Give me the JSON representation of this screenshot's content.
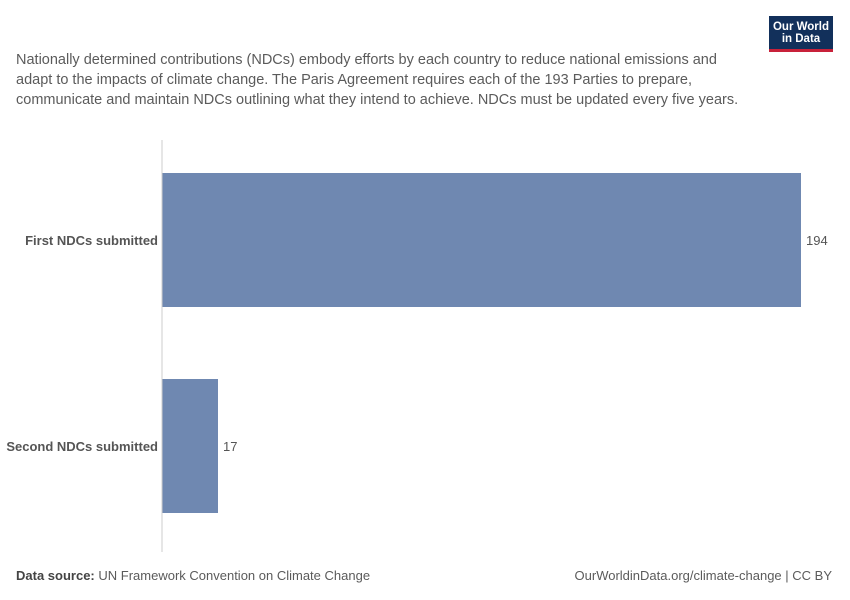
{
  "header": {
    "subtitle": "Nationally determined contributions (NDCs) embody efforts by each country to reduce national emissions and adapt to the impacts of climate change. The Paris Agreement requires each of the 193 Parties to prepare, communicate and maintain NDCs outlining what they intend to achieve. NDCs must be updated every five years."
  },
  "logo": {
    "line1": "Our World",
    "line2": "in Data"
  },
  "footer": {
    "source_label": "Data source:",
    "source_text": "UN Framework Convention on Climate Change",
    "right_text": "OurWorldinData.org/climate-change | CC BY"
  },
  "chart_data": {
    "type": "bar",
    "orientation": "horizontal",
    "categories": [
      "First NDCs submitted",
      "Second NDCs submitted"
    ],
    "values": [
      194,
      17
    ],
    "xlim": [
      0,
      194
    ],
    "bar_color": "#6f88b1",
    "grid": false,
    "legend": "none"
  }
}
